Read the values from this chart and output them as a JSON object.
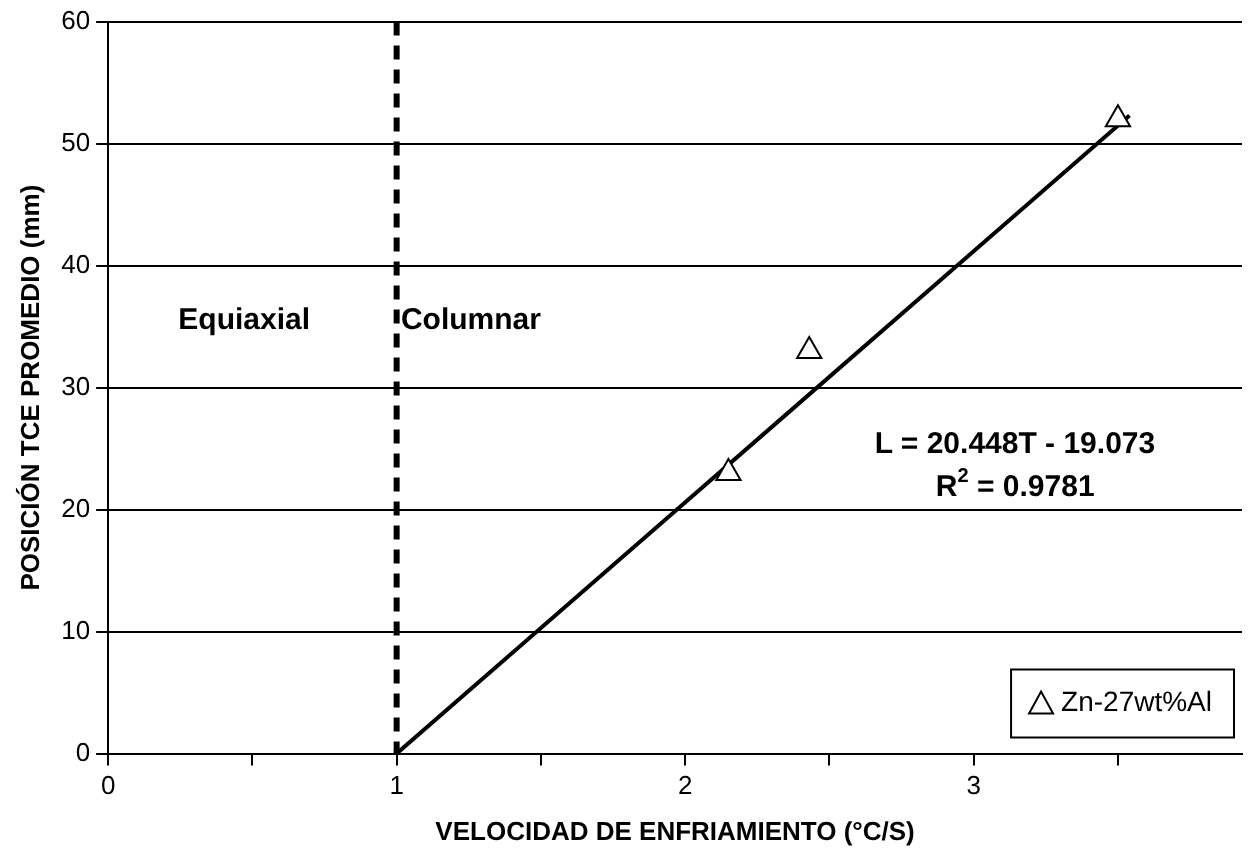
{
  "chart_data": {
    "type": "scatter",
    "xlabel": "VELOCIDAD DE ENFRIAMIENTO (°C/S)",
    "ylabel": "POSICIÓN TCE PROMEDIO (mm)",
    "xlim": [
      0,
      3.93
    ],
    "xticks": [
      0,
      {
        "value": 0.5,
        "label": null
      },
      1,
      {
        "value": 1.5,
        "label": null
      },
      2,
      {
        "value": 2.5,
        "label": null
      },
      3,
      {
        "value": 3.5,
        "label": null
      }
    ],
    "ylim": [
      0,
      60
    ],
    "yticks": [
      0,
      10,
      20,
      30,
      40,
      50,
      60
    ],
    "grid": "y",
    "legend": "bottom right",
    "series": [
      {
        "name": "Zn-27wt%Al",
        "color": "#000000",
        "marker": "triangle",
        "x": [
          2.15,
          2.43,
          3.5
        ],
        "values": [
          23,
          33,
          52
        ]
      },
      {
        "type": "line",
        "color": "#000000",
        "x": [
          1,
          3.54
        ],
        "values": [
          0,
          52.3
        ]
      }
    ],
    "ref_lines": [
      {
        "axis": "x",
        "value": 1,
        "label": null,
        "line_style": "dashed",
        "color": "#000000"
      }
    ],
    "annotations": [
      "Equiaxial",
      "Columnar",
      "L = 20.448T - 19.073",
      "R$^{2}$ = 0.9781"
    ]
  }
}
